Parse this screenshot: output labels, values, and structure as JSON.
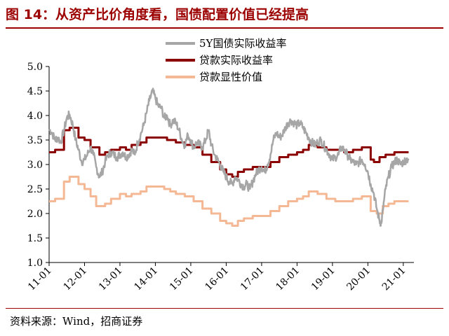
{
  "title": "图 14：从资产比价角度看，国债配置价值已经提高",
  "source": "资料来源：Wind，招商证券",
  "chart_data": {
    "type": "line",
    "title": "图 14：从资产比价角度看，国债配置价值已经提高",
    "xlabel": "",
    "ylabel": "",
    "ylim": [
      1.0,
      5.0
    ],
    "yticks": [
      "1.0",
      "1.5",
      "2.0",
      "2.5",
      "3.0",
      "3.5",
      "4.0",
      "4.5",
      "5.0"
    ],
    "xticks": [
      "11-01",
      "12-01",
      "13-01",
      "14-01",
      "15-01",
      "16-01",
      "17-01",
      "18-01",
      "19-01",
      "20-01",
      "21-01"
    ],
    "x_range": [
      2011.0,
      2021.3
    ],
    "grid": false,
    "legend_position": "top-center",
    "colors": {
      "treasury_5y": "#a6a6a6",
      "loan_real": "#8b0000",
      "loan_implied": "#f5b895",
      "title": "#9c0000"
    },
    "series": [
      {
        "name": "5Y国债实际收益率",
        "style": "noisy",
        "color": "#a6a6a6",
        "points": [
          [
            2011.0,
            3.72
          ],
          [
            2011.08,
            3.65
          ],
          [
            2011.17,
            3.5
          ],
          [
            2011.25,
            3.55
          ],
          [
            2011.33,
            3.45
          ],
          [
            2011.42,
            3.7
          ],
          [
            2011.5,
            3.95
          ],
          [
            2011.58,
            4.02
          ],
          [
            2011.67,
            3.8
          ],
          [
            2011.75,
            3.5
          ],
          [
            2011.83,
            3.3
          ],
          [
            2011.92,
            3.05
          ],
          [
            2012.0,
            3.1
          ],
          [
            2012.08,
            3.2
          ],
          [
            2012.17,
            3.35
          ],
          [
            2012.25,
            3.2
          ],
          [
            2012.33,
            2.95
          ],
          [
            2012.42,
            2.75
          ],
          [
            2012.5,
            2.85
          ],
          [
            2012.58,
            3.05
          ],
          [
            2012.67,
            3.2
          ],
          [
            2012.75,
            3.25
          ],
          [
            2012.83,
            3.2
          ],
          [
            2012.92,
            3.15
          ],
          [
            2013.0,
            3.2
          ],
          [
            2013.08,
            3.25
          ],
          [
            2013.17,
            3.15
          ],
          [
            2013.25,
            3.2
          ],
          [
            2013.33,
            3.3
          ],
          [
            2013.42,
            3.2
          ],
          [
            2013.5,
            3.45
          ],
          [
            2013.58,
            3.6
          ],
          [
            2013.67,
            3.8
          ],
          [
            2013.75,
            4.05
          ],
          [
            2013.83,
            4.3
          ],
          [
            2013.92,
            4.5
          ],
          [
            2014.0,
            4.35
          ],
          [
            2014.08,
            4.2
          ],
          [
            2014.17,
            4.15
          ],
          [
            2014.25,
            3.95
          ],
          [
            2014.33,
            4.0
          ],
          [
            2014.42,
            3.8
          ],
          [
            2014.5,
            3.9
          ],
          [
            2014.58,
            3.85
          ],
          [
            2014.67,
            3.7
          ],
          [
            2014.75,
            3.5
          ],
          [
            2014.83,
            3.4
          ],
          [
            2014.92,
            3.6
          ],
          [
            2015.0,
            3.5
          ],
          [
            2015.08,
            3.35
          ],
          [
            2015.17,
            3.45
          ],
          [
            2015.25,
            3.4
          ],
          [
            2015.33,
            3.35
          ],
          [
            2015.42,
            3.5
          ],
          [
            2015.5,
            3.7
          ],
          [
            2015.58,
            3.4
          ],
          [
            2015.67,
            3.2
          ],
          [
            2015.75,
            3.1
          ],
          [
            2015.83,
            3.0
          ],
          [
            2015.92,
            2.85
          ],
          [
            2016.0,
            2.75
          ],
          [
            2016.08,
            2.65
          ],
          [
            2016.17,
            2.6
          ],
          [
            2016.25,
            2.75
          ],
          [
            2016.33,
            2.7
          ],
          [
            2016.42,
            2.6
          ],
          [
            2016.5,
            2.55
          ],
          [
            2016.58,
            2.6
          ],
          [
            2016.67,
            2.5
          ],
          [
            2016.75,
            2.65
          ],
          [
            2016.83,
            2.8
          ],
          [
            2016.92,
            2.9
          ],
          [
            2017.0,
            2.95
          ],
          [
            2017.08,
            2.85
          ],
          [
            2017.17,
            3.0
          ],
          [
            2017.25,
            3.2
          ],
          [
            2017.33,
            3.5
          ],
          [
            2017.42,
            3.65
          ],
          [
            2017.5,
            3.55
          ],
          [
            2017.58,
            3.6
          ],
          [
            2017.67,
            3.75
          ],
          [
            2017.75,
            3.85
          ],
          [
            2017.83,
            3.9
          ],
          [
            2017.92,
            3.85
          ],
          [
            2018.0,
            3.8
          ],
          [
            2018.08,
            3.85
          ],
          [
            2018.17,
            3.75
          ],
          [
            2018.25,
            3.65
          ],
          [
            2018.33,
            3.55
          ],
          [
            2018.42,
            3.45
          ],
          [
            2018.5,
            3.4
          ],
          [
            2018.58,
            3.45
          ],
          [
            2018.67,
            3.5
          ],
          [
            2018.75,
            3.4
          ],
          [
            2018.83,
            3.3
          ],
          [
            2018.92,
            3.2
          ],
          [
            2019.0,
            3.1
          ],
          [
            2019.08,
            3.15
          ],
          [
            2019.17,
            3.2
          ],
          [
            2019.25,
            3.35
          ],
          [
            2019.33,
            3.3
          ],
          [
            2019.42,
            3.2
          ],
          [
            2019.5,
            3.1
          ],
          [
            2019.58,
            3.05
          ],
          [
            2019.67,
            3.0
          ],
          [
            2019.75,
            3.05
          ],
          [
            2019.83,
            3.1
          ],
          [
            2019.92,
            3.0
          ],
          [
            2020.0,
            2.85
          ],
          [
            2020.08,
            2.6
          ],
          [
            2020.17,
            2.4
          ],
          [
            2020.25,
            2.1
          ],
          [
            2020.33,
            1.85
          ],
          [
            2020.38,
            1.8
          ],
          [
            2020.42,
            2.05
          ],
          [
            2020.5,
            2.5
          ],
          [
            2020.58,
            2.75
          ],
          [
            2020.67,
            2.95
          ],
          [
            2020.75,
            3.05
          ],
          [
            2020.83,
            3.1
          ],
          [
            2020.92,
            3.0
          ],
          [
            2021.0,
            3.05
          ],
          [
            2021.08,
            3.1
          ],
          [
            2021.15,
            3.12
          ]
        ]
      },
      {
        "name": "贷款实际收益率",
        "style": "step",
        "color": "#8b0000",
        "points": [
          [
            2011.0,
            3.25
          ],
          [
            2011.17,
            3.3
          ],
          [
            2011.42,
            3.7
          ],
          [
            2011.58,
            3.75
          ],
          [
            2011.83,
            3.55
          ],
          [
            2012.0,
            3.5
          ],
          [
            2012.17,
            3.35
          ],
          [
            2012.42,
            3.2
          ],
          [
            2012.58,
            3.25
          ],
          [
            2012.75,
            3.3
          ],
          [
            2013.0,
            3.35
          ],
          [
            2013.17,
            3.3
          ],
          [
            2013.33,
            3.4
          ],
          [
            2013.58,
            3.45
          ],
          [
            2013.75,
            3.55
          ],
          [
            2014.0,
            3.55
          ],
          [
            2014.33,
            3.5
          ],
          [
            2014.58,
            3.45
          ],
          [
            2014.83,
            3.4
          ],
          [
            2015.08,
            3.35
          ],
          [
            2015.33,
            3.2
          ],
          [
            2015.58,
            3.05
          ],
          [
            2015.83,
            2.9
          ],
          [
            2016.0,
            2.8
          ],
          [
            2016.17,
            2.75
          ],
          [
            2016.33,
            2.85
          ],
          [
            2016.5,
            2.9
          ],
          [
            2016.75,
            2.95
          ],
          [
            2017.0,
            2.95
          ],
          [
            2017.25,
            3.05
          ],
          [
            2017.5,
            3.15
          ],
          [
            2017.75,
            3.2
          ],
          [
            2018.0,
            3.25
          ],
          [
            2018.17,
            3.3
          ],
          [
            2018.33,
            3.4
          ],
          [
            2018.58,
            3.35
          ],
          [
            2018.83,
            3.3
          ],
          [
            2019.08,
            3.3
          ],
          [
            2019.33,
            3.25
          ],
          [
            2019.58,
            3.3
          ],
          [
            2019.83,
            3.35
          ],
          [
            2020.08,
            3.1
          ],
          [
            2020.17,
            3.05
          ],
          [
            2020.33,
            3.15
          ],
          [
            2020.5,
            3.2
          ],
          [
            2020.75,
            3.25
          ],
          [
            2021.0,
            3.25
          ],
          [
            2021.15,
            3.25
          ]
        ]
      },
      {
        "name": "贷款显性价值",
        "style": "step",
        "color": "#f5b895",
        "points": [
          [
            2011.0,
            2.25
          ],
          [
            2011.17,
            2.3
          ],
          [
            2011.42,
            2.65
          ],
          [
            2011.58,
            2.75
          ],
          [
            2011.83,
            2.6
          ],
          [
            2012.0,
            2.5
          ],
          [
            2012.17,
            2.35
          ],
          [
            2012.33,
            2.15
          ],
          [
            2012.58,
            2.2
          ],
          [
            2012.75,
            2.3
          ],
          [
            2013.0,
            2.4
          ],
          [
            2013.17,
            2.35
          ],
          [
            2013.33,
            2.4
          ],
          [
            2013.58,
            2.45
          ],
          [
            2013.75,
            2.55
          ],
          [
            2014.0,
            2.55
          ],
          [
            2014.25,
            2.5
          ],
          [
            2014.42,
            2.45
          ],
          [
            2014.58,
            2.4
          ],
          [
            2014.83,
            2.35
          ],
          [
            2015.08,
            2.25
          ],
          [
            2015.33,
            2.1
          ],
          [
            2015.58,
            2.0
          ],
          [
            2015.83,
            1.85
          ],
          [
            2016.0,
            1.8
          ],
          [
            2016.17,
            1.75
          ],
          [
            2016.33,
            1.85
          ],
          [
            2016.5,
            1.9
          ],
          [
            2016.75,
            1.95
          ],
          [
            2017.0,
            1.95
          ],
          [
            2017.25,
            2.05
          ],
          [
            2017.5,
            2.15
          ],
          [
            2017.75,
            2.25
          ],
          [
            2018.0,
            2.3
          ],
          [
            2018.17,
            2.35
          ],
          [
            2018.33,
            2.45
          ],
          [
            2018.58,
            2.4
          ],
          [
            2018.83,
            2.3
          ],
          [
            2019.08,
            2.25
          ],
          [
            2019.33,
            2.25
          ],
          [
            2019.58,
            2.3
          ],
          [
            2019.83,
            2.35
          ],
          [
            2020.08,
            2.05
          ],
          [
            2020.25,
            2.0
          ],
          [
            2020.42,
            2.15
          ],
          [
            2020.58,
            2.2
          ],
          [
            2020.75,
            2.25
          ],
          [
            2021.0,
            2.25
          ],
          [
            2021.15,
            2.25
          ]
        ]
      }
    ]
  }
}
